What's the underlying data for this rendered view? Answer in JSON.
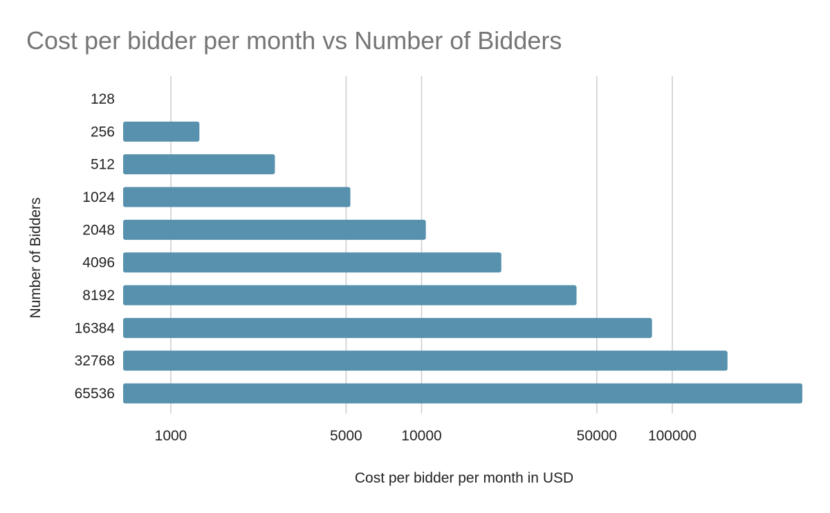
{
  "chart_data": {
    "type": "bar",
    "orientation": "horizontal",
    "title": "Cost per bidder per month vs Number of Bidders",
    "xlabel": "Cost per bidder per month in USD",
    "ylabel": "Number of Bidders",
    "x_scale": "log",
    "xlim": [
      500,
      300000
    ],
    "x_ticks": [
      1000,
      5000,
      10000,
      50000,
      100000
    ],
    "x_tick_labels": [
      "1000",
      "5000",
      "10000",
      "50000",
      "100000"
    ],
    "grid": "vertical",
    "legend": "none",
    "bar_color": "#5791ae",
    "categories": [
      "128",
      "256",
      "512",
      "1024",
      "2048",
      "4096",
      "8192",
      "16384",
      "32768",
      "65536"
    ],
    "values": [
      625,
      1300,
      2600,
      5200,
      10400,
      20800,
      41500,
      83000,
      166000,
      330000
    ]
  }
}
